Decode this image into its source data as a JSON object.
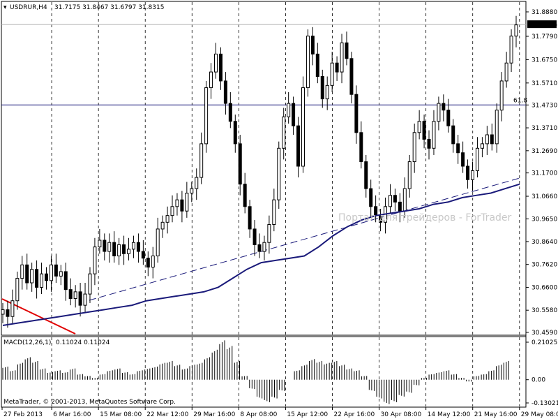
{
  "header": {
    "symbol": "USDRUR,H4",
    "ohlc": "31.7175 31.8467 31.6797 31.8315"
  },
  "indicator": {
    "label": "MACD(12,26,1)",
    "values": "0.11024 0.11024"
  },
  "watermark": "Портал для трейдеров - ForTrader",
  "copyright": "MetaTrader, © 2001-2013, MetaQuotes Software Corp.",
  "fib_label": "61.8",
  "current_price": "31.8315",
  "colors": {
    "candle": "#000000",
    "ma_line": "#1a1a7a",
    "trend_red": "#e00000",
    "fib_line": "#1a1a7a",
    "macd_hist": "#000000"
  },
  "chart_data": {
    "type": "candlestick",
    "price_axis_ticks": [
      "31.8880",
      "31.7790",
      "31.6750",
      "31.5710",
      "31.4730",
      "31.3710",
      "31.2690",
      "31.1700",
      "31.0660",
      "30.9650",
      "30.8640",
      "30.7620",
      "30.6600",
      "30.5580",
      "30.4590"
    ],
    "macd_axis_ticks": [
      "0.21025",
      "0.00",
      "-0.13021"
    ],
    "time_labels": [
      "27 Feb 2013",
      "6 Mar 16:00",
      "15 Mar 08:00",
      "22 Mar 12:00",
      "29 Mar 16:00",
      "8 Apr 08:00",
      "15 Apr 12:00",
      "22 Apr 16:00",
      "30 Apr 08:00",
      "14 May 12:00",
      "21 May 16:00",
      "29 May 08:00"
    ],
    "ylim": [
      30.459,
      31.888
    ],
    "fib_level": 31.473,
    "price_series": [
      30.56,
      30.53,
      30.6,
      30.7,
      30.76,
      30.68,
      30.74,
      30.66,
      30.72,
      30.69,
      30.76,
      30.71,
      30.73,
      30.65,
      30.61,
      30.64,
      30.58,
      30.63,
      30.72,
      30.84,
      30.87,
      30.82,
      30.86,
      30.8,
      30.85,
      30.81,
      30.83,
      30.86,
      30.82,
      30.79,
      30.75,
      30.8,
      30.92,
      30.95,
      30.98,
      31.02,
      31.05,
      31.0,
      31.08,
      31.1,
      31.15,
      31.3,
      31.55,
      31.62,
      31.7,
      31.58,
      31.48,
      31.4,
      31.3,
      31.12,
      31.02,
      30.92,
      30.85,
      30.82,
      30.86,
      30.94,
      31.05,
      31.28,
      31.42,
      31.48,
      31.38,
      31.2,
      31.55,
      31.78,
      31.7,
      31.6,
      31.5,
      31.56,
      31.66,
      31.62,
      31.75,
      31.68,
      31.52,
      31.35,
      31.22,
      31.1,
      31.02,
      30.98,
      30.95,
      31.02,
      31.07,
      31.04,
      31.0,
      31.1,
      31.22,
      31.35,
      31.4,
      31.32,
      31.28,
      31.4,
      31.48,
      31.45,
      31.38,
      31.3,
      31.26,
      31.2,
      31.14,
      31.18,
      31.28,
      31.3,
      31.34,
      31.3,
      31.45,
      31.58,
      31.66,
      31.78,
      31.83
    ],
    "ma_series": [
      30.49,
      30.5,
      30.51,
      30.52,
      30.53,
      30.54,
      30.55,
      30.56,
      30.57,
      30.58,
      30.6,
      30.61,
      30.62,
      30.63,
      30.64,
      30.66,
      30.7,
      30.74,
      30.77,
      30.78,
      30.79,
      30.8,
      30.84,
      30.89,
      30.93,
      30.96,
      30.98,
      30.99,
      31.0,
      31.01,
      31.03,
      31.04,
      31.06,
      31.07,
      31.08,
      31.1,
      31.12
    ],
    "macd_values": [
      0.07,
      0.05,
      0.09,
      0.12,
      0.1,
      0.06,
      0.04,
      0.05,
      0.04,
      0.06,
      0.03,
      0.02,
      0.01,
      0.03,
      0.05,
      0.06,
      0.04,
      0.03,
      0.05,
      0.06,
      0.07,
      0.09,
      0.1,
      0.08,
      0.06,
      0.08,
      0.09,
      0.12,
      0.16,
      0.21,
      0.18,
      0.1,
      0.02,
      -0.05,
      -0.1,
      -0.12,
      -0.1,
      -0.06,
      0.0,
      0.05,
      0.08,
      0.11,
      0.1,
      0.09,
      0.1,
      0.08,
      0.06,
      0.05,
      0.02,
      -0.06,
      -0.1,
      -0.13,
      -0.12,
      -0.09,
      -0.07,
      -0.03,
      0.01,
      0.03,
      0.04,
      0.05,
      0.03,
      0.01,
      -0.01,
      0.02,
      0.03,
      0.05,
      0.08,
      0.1
    ]
  }
}
